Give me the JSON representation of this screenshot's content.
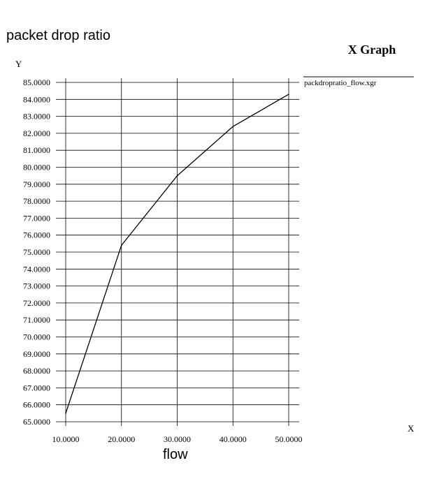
{
  "page": {
    "title": "packet drop ratio",
    "bottom_label": "flow"
  },
  "chart_data": {
    "type": "line",
    "title": "X Graph",
    "xlabel": "X",
    "ylabel": "Y",
    "xlim": [
      10,
      50
    ],
    "ylim": [
      65,
      85
    ],
    "grid": true,
    "legend_placement": "top-right",
    "x_ticks": [
      "10.0000",
      "20.0000",
      "30.0000",
      "40.0000",
      "50.0000"
    ],
    "y_ticks": [
      "65.0000",
      "66.0000",
      "67.0000",
      "68.0000",
      "69.0000",
      "70.0000",
      "71.0000",
      "72.0000",
      "73.0000",
      "74.0000",
      "75.0000",
      "76.0000",
      "77.0000",
      "78.0000",
      "79.0000",
      "80.0000",
      "81.0000",
      "82.0000",
      "83.0000",
      "84.0000",
      "85.0000"
    ],
    "series": [
      {
        "name": "packdropratio_flow.xgr",
        "x": [
          10,
          20,
          30,
          40,
          50
        ],
        "y": [
          65.5,
          75.4,
          79.5,
          82.4,
          84.3
        ]
      }
    ],
    "colors": {
      "line": "#000000",
      "grid": "#000000"
    }
  }
}
